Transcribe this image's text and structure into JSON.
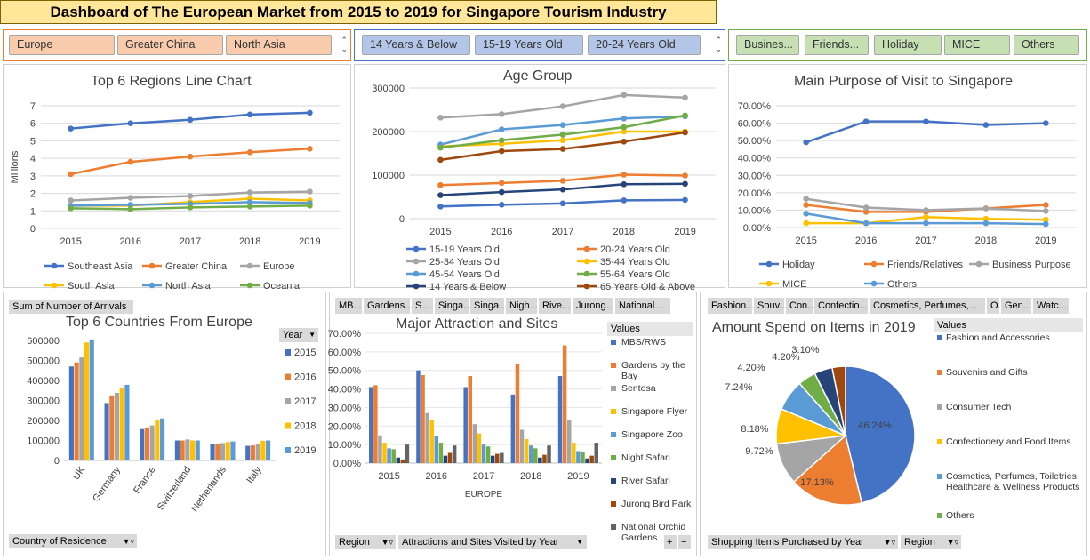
{
  "title": "Dashboard of The European Market from 2015 to 2019 for Singapore Tourism Industry",
  "slicers": {
    "region": [
      "Europe",
      "Greater China",
      "North Asia"
    ],
    "age": [
      "14 Years & Below",
      "15-19 Years Old",
      "20-24 Years Old"
    ],
    "purpose": [
      "Busines...",
      "Friends...",
      "Holiday",
      "MICE",
      "Others"
    ]
  },
  "colors": {
    "slicer_region": "#f8cbad",
    "slicer_age": "#b4c6e7",
    "slicer_purpose": "#c6e0b4"
  },
  "chart_data": [
    {
      "id": "regions",
      "type": "line",
      "title": "Top 6 Regions Line Chart",
      "ylabel": "Millions",
      "ylim": [
        0,
        7
      ],
      "yticks": [
        "0",
        "1",
        "2",
        "3",
        "4",
        "5",
        "6",
        "7"
      ],
      "x": [
        "2015",
        "2016",
        "2017",
        "2018",
        "2019"
      ],
      "series": [
        {
          "name": "Southeast Asia",
          "color": "#4472c4",
          "values": [
            5.7,
            6.0,
            6.2,
            6.5,
            6.6
          ]
        },
        {
          "name": "Greater China",
          "color": "#ed7d31",
          "values": [
            3.1,
            3.8,
            4.1,
            4.35,
            4.55
          ]
        },
        {
          "name": "Europe",
          "color": "#a5a5a5",
          "values": [
            1.6,
            1.75,
            1.85,
            2.05,
            2.1
          ]
        },
        {
          "name": "South Asia",
          "color": "#ffc000",
          "values": [
            1.3,
            1.3,
            1.5,
            1.7,
            1.6
          ]
        },
        {
          "name": "North Asia",
          "color": "#5b9bd5",
          "values": [
            1.3,
            1.35,
            1.4,
            1.5,
            1.45
          ]
        },
        {
          "name": "Oceania",
          "color": "#70ad47",
          "values": [
            1.15,
            1.1,
            1.2,
            1.25,
            1.3
          ]
        }
      ]
    },
    {
      "id": "age",
      "type": "line",
      "title": "Age Group",
      "ylim": [
        0,
        300000
      ],
      "yticks": [
        "0",
        "100000",
        "200000",
        "300000"
      ],
      "x": [
        "2015",
        "2016",
        "2017",
        "2018",
        "2019"
      ],
      "series": [
        {
          "name": "15-19 Years Old",
          "color": "#4472c4",
          "values": [
            28000,
            32000,
            35000,
            42000,
            43000
          ]
        },
        {
          "name": "20-24 Years Old",
          "color": "#ed7d31",
          "values": [
            77000,
            82000,
            87000,
            101000,
            99000
          ]
        },
        {
          "name": "25-34 Years Old",
          "color": "#a5a5a5",
          "values": [
            232000,
            240000,
            258000,
            284000,
            278000
          ]
        },
        {
          "name": "35-44 Years Old",
          "color": "#ffc000",
          "values": [
            166000,
            172000,
            180000,
            200000,
            200000
          ]
        },
        {
          "name": "45-54 Years Old",
          "color": "#5b9bd5",
          "values": [
            170000,
            205000,
            215000,
            230000,
            235000
          ]
        },
        {
          "name": "55-64 Years Old",
          "color": "#70ad47",
          "values": [
            163000,
            180000,
            193000,
            210000,
            237000
          ]
        },
        {
          "name": "14 Years & Below",
          "color": "#264478",
          "values": [
            54000,
            61000,
            67000,
            79000,
            80000
          ]
        },
        {
          "name": "65 Years Old & Above",
          "color": "#9e480e",
          "values": [
            135000,
            155000,
            160000,
            177000,
            198000
          ]
        }
      ]
    },
    {
      "id": "purpose",
      "type": "line",
      "title": "Main Purpose of Visit to Singapore",
      "ylim": [
        0,
        0.7
      ],
      "yticks": [
        "0.00%",
        "10.00%",
        "20.00%",
        "30.00%",
        "40.00%",
        "50.00%",
        "60.00%",
        "70.00%"
      ],
      "x": [
        "2015",
        "2016",
        "2017",
        "2018",
        "2019"
      ],
      "series": [
        {
          "name": "Holiday",
          "color": "#4472c4",
          "values": [
            0.49,
            0.61,
            0.61,
            0.59,
            0.6
          ]
        },
        {
          "name": "Friends/Relatives",
          "color": "#ed7d31",
          "values": [
            0.13,
            0.09,
            0.09,
            0.11,
            0.13
          ]
        },
        {
          "name": "Business Purpose",
          "color": "#a5a5a5",
          "values": [
            0.165,
            0.115,
            0.1,
            0.11,
            0.095
          ]
        },
        {
          "name": "MICE",
          "color": "#ffc000",
          "values": [
            0.025,
            0.025,
            0.06,
            0.05,
            0.045
          ]
        },
        {
          "name": "Others",
          "color": "#5b9bd5",
          "values": [
            0.08,
            0.025,
            0.025,
            0.025,
            0.02
          ]
        }
      ]
    },
    {
      "id": "countries",
      "type": "bar",
      "title": "Top 6 Countries From Europe",
      "ylim": [
        0,
        600000
      ],
      "yticks": [
        "0",
        "100000",
        "200000",
        "300000",
        "400000",
        "500000",
        "600000"
      ],
      "categories": [
        "UK",
        "Germany",
        "France",
        "Switzerland",
        "Netherlands",
        "Italy"
      ],
      "series": [
        {
          "name": "2015",
          "color": "#4472c4",
          "values": [
            470000,
            287000,
            157000,
            100000,
            80000,
            73000
          ]
        },
        {
          "name": "2016",
          "color": "#ed7d31",
          "values": [
            490000,
            325000,
            165000,
            100000,
            82000,
            75000
          ]
        },
        {
          "name": "2017",
          "color": "#a5a5a5",
          "values": [
            515000,
            338000,
            175000,
            105000,
            87000,
            80000
          ]
        },
        {
          "name": "2018",
          "color": "#ffc000",
          "values": [
            590000,
            360000,
            205000,
            100000,
            92000,
            98000
          ]
        },
        {
          "name": "2019",
          "color": "#5b9bd5",
          "values": [
            605000,
            378000,
            210000,
            100000,
            95000,
            100000
          ]
        }
      ]
    },
    {
      "id": "attractions",
      "type": "bar",
      "title": "Major Attraction and Sites",
      "xlabel": "EUROPE",
      "ylim": [
        0,
        0.7
      ],
      "yticks": [
        "0.00%",
        "10.00%",
        "20.00%",
        "30.00%",
        "40.00%",
        "50.00%",
        "60.00%",
        "70.00%"
      ],
      "categories": [
        "2015",
        "2016",
        "2017",
        "2018",
        "2019"
      ],
      "series": [
        {
          "name": "MBS/RWS",
          "color": "#4472c4",
          "values": [
            0.41,
            0.5,
            0.41,
            0.37,
            0.47
          ]
        },
        {
          "name": "Gardens by the Bay",
          "color": "#ed7d31",
          "values": [
            0.42,
            0.475,
            0.47,
            0.535,
            0.635
          ]
        },
        {
          "name": "Sentosa",
          "color": "#a5a5a5",
          "values": [
            0.15,
            0.27,
            0.21,
            0.18,
            0.235
          ]
        },
        {
          "name": "Singapore Flyer",
          "color": "#ffc000",
          "values": [
            0.11,
            0.23,
            0.16,
            0.13,
            0.11
          ]
        },
        {
          "name": "Singapore Zoo",
          "color": "#5b9bd5",
          "values": [
            0.08,
            0.145,
            0.1,
            0.095,
            0.065
          ]
        },
        {
          "name": "Night Safari",
          "color": "#70ad47",
          "values": [
            0.075,
            0.11,
            0.09,
            0.08,
            0.06
          ]
        },
        {
          "name": "River Safari",
          "color": "#264478",
          "values": [
            0.03,
            0.04,
            0.04,
            0.03,
            0.025
          ]
        },
        {
          "name": "Jurong Bird Park",
          "color": "#9e480e",
          "values": [
            0.02,
            0.055,
            0.05,
            0.045,
            0.04
          ]
        },
        {
          "name": "National Orchid Gardens",
          "color": "#636363",
          "values": [
            0.1,
            0.095,
            0.055,
            0.095,
            0.11
          ]
        }
      ]
    },
    {
      "id": "spend",
      "type": "pie",
      "title": "Amount Spend on Items in 2019",
      "slices": [
        {
          "name": "Fashion and Accessories",
          "value": 46.24,
          "label": "46.24%",
          "color": "#4472c4"
        },
        {
          "name": "Souvenirs and Gifts",
          "value": 17.13,
          "label": "17.13%",
          "color": "#ed7d31"
        },
        {
          "name": "Consumer Tech",
          "value": 9.72,
          "label": "9.72%",
          "color": "#a5a5a5"
        },
        {
          "name": "Confectionery and Food Items",
          "value": 8.18,
          "label": "8.18%",
          "color": "#ffc000"
        },
        {
          "name": "Cosmetics, Perfumes, Toiletries, Healthcare & Wellness Products",
          "value": 7.24,
          "label": "7.24%",
          "color": "#5b9bd5"
        },
        {
          "name": "Others",
          "value": 4.2,
          "label": "4.20%",
          "color": "#70ad47"
        },
        {
          "name": "",
          "value": 4.2,
          "label": "4.20%",
          "color": "#264478"
        },
        {
          "name": "",
          "value": 3.1,
          "label": "3.10%",
          "color": "#9e480e"
        }
      ]
    }
  ],
  "labels": {
    "sum_arrivals": "Sum of Number of Arrivals",
    "year": "Year",
    "country_field": "Country of Residence",
    "region_field": "Region",
    "attr_field": "Attractions and Sites Visited by Year",
    "values": "Values",
    "shop_field": "Shopping Items Purchased by Year",
    "attr_cols": [
      "MB...",
      "Gardens...",
      "S...",
      "Singa...",
      "Singa...",
      "Nigh...",
      "Rive...",
      "Jurong...",
      "National..."
    ],
    "shop_cols": [
      "Fashion...",
      "Souv...",
      "Con...",
      "Confectio...",
      "Cosmetics, Perfumes,...",
      "O...",
      "Gen...",
      "Watc..."
    ],
    "spend_legend": [
      "Fashion and Accessories",
      "Souvenirs and Gifts",
      "Consumer Tech",
      "Confectionery and Food Items",
      "Cosmetics, Perfumes, Toiletries, Healthcare & Wellness Products",
      "Others"
    ],
    "plus": "+",
    "minus": "−"
  }
}
